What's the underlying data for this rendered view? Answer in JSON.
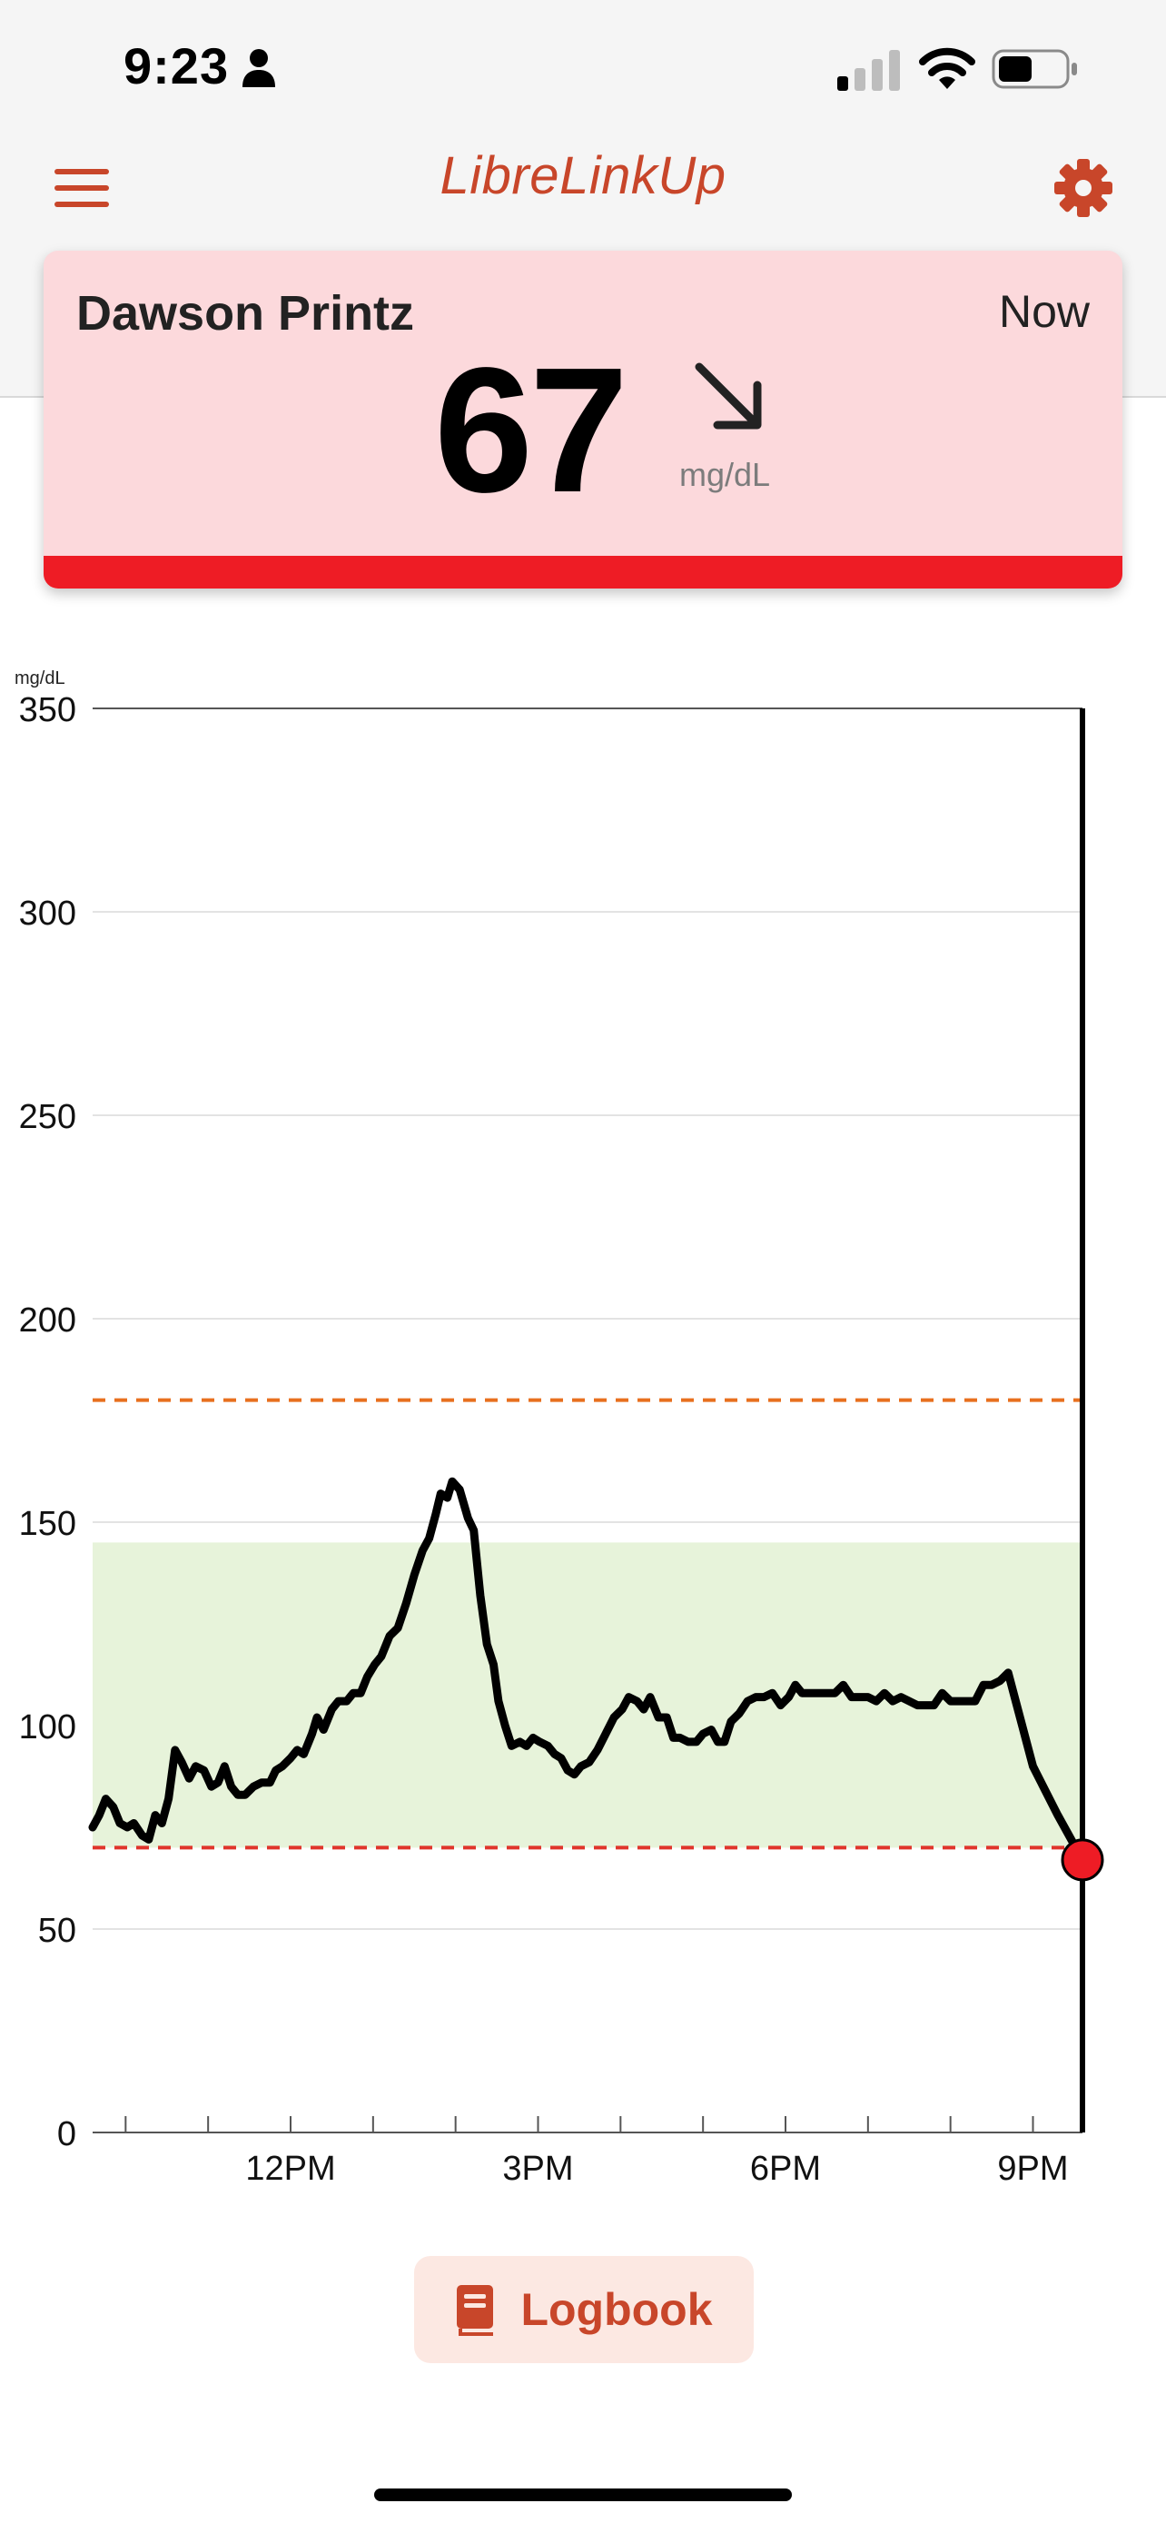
{
  "status_bar": {
    "time": "9:23",
    "icons": [
      "person-icon",
      "cellular-signal-icon",
      "wifi-icon",
      "battery-icon"
    ]
  },
  "header": {
    "title": "LibreLinkUp",
    "menu_icon": "hamburger-menu-icon",
    "settings_icon": "gear-icon"
  },
  "patient_card": {
    "name": "Dawson Printz",
    "time_label": "Now",
    "value": "67",
    "unit": "mg/dL",
    "trend_icon": "arrow-down-right-icon",
    "status_color": "#ee1c25",
    "background_color": "#fcd9dc"
  },
  "chart_data": {
    "type": "line",
    "title": "",
    "ylabel": "mg/dL",
    "xlabel": "",
    "ylim": [
      0,
      350
    ],
    "yticks": [
      0,
      50,
      100,
      150,
      200,
      250,
      300,
      350
    ],
    "xlim": [
      9.6,
      21.6
    ],
    "xtick_labels": [
      {
        "label": "12PM",
        "hour": 12
      },
      {
        "label": "3PM",
        "hour": 15
      },
      {
        "label": "6PM",
        "hour": 18
      },
      {
        "label": "9PM",
        "hour": 21
      }
    ],
    "minor_tick_hours": [
      10,
      11,
      12,
      13,
      14,
      15,
      16,
      17,
      18,
      19,
      20,
      21
    ],
    "target_range": {
      "low": 70,
      "high": 145,
      "color": "#e7f3da"
    },
    "high_threshold": {
      "value": 180,
      "color": "#e8701f"
    },
    "low_threshold": {
      "value": 70,
      "color": "#e0342b"
    },
    "current_time_hour": 21.6,
    "current_point": {
      "hour": 21.6,
      "value": 67,
      "color": "#ee1c25"
    },
    "series": [
      {
        "values": [
          [
            9.6,
            75
          ],
          [
            9.68,
            78
          ],
          [
            9.76,
            82
          ],
          [
            9.85,
            80
          ],
          [
            9.93,
            76
          ],
          [
            10.02,
            75
          ],
          [
            10.1,
            76
          ],
          [
            10.2,
            73
          ],
          [
            10.28,
            72
          ],
          [
            10.36,
            78
          ],
          [
            10.44,
            76
          ],
          [
            10.52,
            82
          ],
          [
            10.6,
            94
          ],
          [
            10.68,
            91
          ],
          [
            10.77,
            87
          ],
          [
            10.85,
            90
          ],
          [
            10.95,
            89
          ],
          [
            11.04,
            85
          ],
          [
            11.12,
            86
          ],
          [
            11.2,
            90
          ],
          [
            11.28,
            85
          ],
          [
            11.36,
            83
          ],
          [
            11.45,
            83
          ],
          [
            11.55,
            85
          ],
          [
            11.65,
            86
          ],
          [
            11.75,
            86
          ],
          [
            11.82,
            89
          ],
          [
            11.9,
            90
          ],
          [
            12.0,
            92
          ],
          [
            12.08,
            94
          ],
          [
            12.16,
            93
          ],
          [
            12.26,
            98
          ],
          [
            12.32,
            102
          ],
          [
            12.4,
            99
          ],
          [
            12.5,
            104
          ],
          [
            12.58,
            106
          ],
          [
            12.68,
            106
          ],
          [
            12.76,
            108
          ],
          [
            12.85,
            108
          ],
          [
            12.93,
            112
          ],
          [
            13.02,
            115
          ],
          [
            13.1,
            117
          ],
          [
            13.2,
            122
          ],
          [
            13.3,
            124
          ],
          [
            13.4,
            130
          ],
          [
            13.5,
            137
          ],
          [
            13.6,
            143
          ],
          [
            13.68,
            146
          ],
          [
            13.76,
            152
          ],
          [
            13.82,
            157
          ],
          [
            13.9,
            156
          ],
          [
            13.96,
            160
          ],
          [
            14.05,
            158
          ],
          [
            14.15,
            151
          ],
          [
            14.22,
            148
          ],
          [
            14.3,
            132
          ],
          [
            14.38,
            120
          ],
          [
            14.46,
            115
          ],
          [
            14.52,
            106
          ],
          [
            14.6,
            100
          ],
          [
            14.68,
            95
          ],
          [
            14.78,
            96
          ],
          [
            14.86,
            95
          ],
          [
            14.94,
            97
          ],
          [
            15.02,
            96
          ],
          [
            15.12,
            95
          ],
          [
            15.2,
            93
          ],
          [
            15.28,
            92
          ],
          [
            15.36,
            89
          ],
          [
            15.44,
            88
          ],
          [
            15.52,
            90
          ],
          [
            15.62,
            91
          ],
          [
            15.72,
            94
          ],
          [
            15.82,
            98
          ],
          [
            15.92,
            102
          ],
          [
            16.02,
            104
          ],
          [
            16.1,
            107
          ],
          [
            16.2,
            106
          ],
          [
            16.28,
            104
          ],
          [
            16.36,
            107
          ],
          [
            16.46,
            102
          ],
          [
            16.56,
            102
          ],
          [
            16.64,
            97
          ],
          [
            16.72,
            97
          ],
          [
            16.82,
            96
          ],
          [
            16.92,
            96
          ],
          [
            17.0,
            98
          ],
          [
            17.1,
            99
          ],
          [
            17.18,
            96
          ],
          [
            17.26,
            96
          ],
          [
            17.34,
            101
          ],
          [
            17.44,
            103
          ],
          [
            17.54,
            106
          ],
          [
            17.64,
            107
          ],
          [
            17.74,
            107
          ],
          [
            17.84,
            108
          ],
          [
            17.94,
            105
          ],
          [
            18.04,
            107
          ],
          [
            18.12,
            110
          ],
          [
            18.2,
            108
          ],
          [
            18.3,
            108
          ],
          [
            18.4,
            108
          ],
          [
            18.5,
            108
          ],
          [
            18.6,
            108
          ],
          [
            18.7,
            110
          ],
          [
            18.8,
            107
          ],
          [
            18.9,
            107
          ],
          [
            19.0,
            107
          ],
          [
            19.1,
            106
          ],
          [
            19.2,
            108
          ],
          [
            19.3,
            106
          ],
          [
            19.4,
            107
          ],
          [
            19.5,
            106
          ],
          [
            19.6,
            105
          ],
          [
            19.7,
            105
          ],
          [
            19.8,
            105
          ],
          [
            19.9,
            108
          ],
          [
            20.0,
            106
          ],
          [
            20.1,
            106
          ],
          [
            20.2,
            106
          ],
          [
            20.3,
            106
          ],
          [
            20.4,
            110
          ],
          [
            20.5,
            110
          ],
          [
            20.6,
            111
          ],
          [
            20.7,
            113
          ],
          [
            21.0,
            90
          ],
          [
            21.3,
            78
          ],
          [
            21.6,
            67
          ]
        ],
        "color": "#000000"
      }
    ]
  },
  "logbook": {
    "label": "Logbook",
    "icon": "book-icon"
  }
}
